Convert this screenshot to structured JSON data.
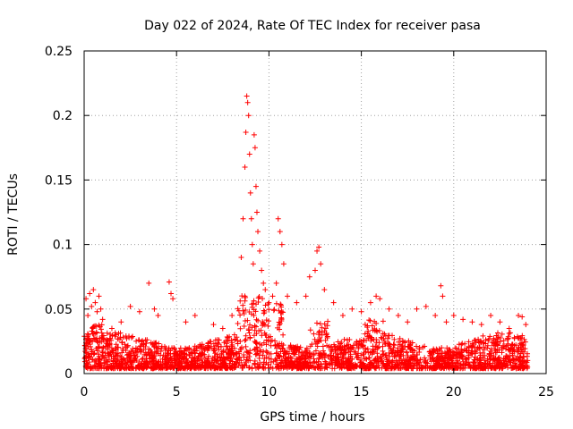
{
  "chart_data": {
    "type": "scatter",
    "title": "Day 022 of 2024, Rate Of TEC Index for receiver pasa",
    "xlabel": "GPS time / hours",
    "ylabel": "ROTI / TECUs",
    "xlim": [
      0,
      25
    ],
    "ylim": [
      0,
      0.25
    ],
    "x_ticks": [
      0,
      5,
      10,
      15,
      20,
      25
    ],
    "y_ticks": [
      0,
      0.05,
      0.1,
      0.15,
      0.2,
      0.25
    ],
    "x_tick_labels": [
      "0",
      "5",
      "10",
      "15",
      "20",
      "25"
    ],
    "y_tick_labels": [
      "0",
      "0.05",
      "0.1",
      "0.15",
      "0.2",
      "0.25"
    ],
    "grid": true,
    "legend": "none",
    "marker": "plus",
    "color": "#ff0000",
    "series": [
      {
        "points": [
          [
            0.1,
            0.058
          ],
          [
            0.2,
            0.045
          ],
          [
            0.3,
            0.062
          ],
          [
            0.4,
            0.052
          ],
          [
            0.5,
            0.065
          ],
          [
            0.6,
            0.055
          ],
          [
            0.7,
            0.048
          ],
          [
            0.8,
            0.06
          ],
          [
            0.9,
            0.05
          ],
          [
            1.0,
            0.042
          ],
          [
            1.5,
            0.035
          ],
          [
            2.0,
            0.04
          ],
          [
            2.5,
            0.052
          ],
          [
            3.0,
            0.048
          ],
          [
            3.5,
            0.07
          ],
          [
            3.8,
            0.05
          ],
          [
            4.0,
            0.045
          ],
          [
            4.6,
            0.071
          ],
          [
            4.7,
            0.062
          ],
          [
            4.8,
            0.058
          ],
          [
            5.5,
            0.04
          ],
          [
            6.0,
            0.045
          ],
          [
            7.0,
            0.038
          ],
          [
            7.5,
            0.035
          ],
          [
            8.0,
            0.045
          ],
          [
            8.5,
            0.09
          ],
          [
            8.6,
            0.12
          ],
          [
            8.7,
            0.16
          ],
          [
            8.75,
            0.187
          ],
          [
            8.8,
            0.215
          ],
          [
            8.85,
            0.21
          ],
          [
            8.9,
            0.2
          ],
          [
            8.95,
            0.17
          ],
          [
            9.0,
            0.14
          ],
          [
            9.05,
            0.12
          ],
          [
            9.1,
            0.1
          ],
          [
            9.15,
            0.085
          ],
          [
            9.2,
            0.185
          ],
          [
            9.25,
            0.175
          ],
          [
            9.3,
            0.145
          ],
          [
            9.35,
            0.125
          ],
          [
            9.4,
            0.11
          ],
          [
            9.5,
            0.095
          ],
          [
            9.6,
            0.08
          ],
          [
            9.7,
            0.07
          ],
          [
            9.8,
            0.065
          ],
          [
            10.0,
            0.055
          ],
          [
            10.2,
            0.06
          ],
          [
            10.4,
            0.07
          ],
          [
            10.5,
            0.12
          ],
          [
            10.6,
            0.11
          ],
          [
            10.7,
            0.1
          ],
          [
            10.8,
            0.085
          ],
          [
            11.0,
            0.06
          ],
          [
            11.5,
            0.055
          ],
          [
            12.0,
            0.06
          ],
          [
            12.2,
            0.075
          ],
          [
            12.5,
            0.08
          ],
          [
            12.6,
            0.095
          ],
          [
            12.7,
            0.098
          ],
          [
            12.8,
            0.085
          ],
          [
            13.0,
            0.065
          ],
          [
            13.5,
            0.055
          ],
          [
            14.0,
            0.045
          ],
          [
            14.5,
            0.05
          ],
          [
            15.0,
            0.048
          ],
          [
            15.5,
            0.055
          ],
          [
            15.8,
            0.06
          ],
          [
            16.0,
            0.058
          ],
          [
            16.5,
            0.05
          ],
          [
            17.0,
            0.045
          ],
          [
            17.5,
            0.04
          ],
          [
            18.0,
            0.05
          ],
          [
            18.5,
            0.052
          ],
          [
            19.0,
            0.045
          ],
          [
            19.3,
            0.068
          ],
          [
            19.4,
            0.06
          ],
          [
            19.6,
            0.04
          ],
          [
            20.0,
            0.045
          ],
          [
            20.5,
            0.042
          ],
          [
            21.0,
            0.04
          ],
          [
            21.5,
            0.038
          ],
          [
            22.0,
            0.045
          ],
          [
            22.5,
            0.04
          ],
          [
            23.0,
            0.035
          ],
          [
            23.5,
            0.045
          ],
          [
            23.7,
            0.044
          ],
          [
            23.9,
            0.038
          ]
        ]
      }
    ]
  }
}
